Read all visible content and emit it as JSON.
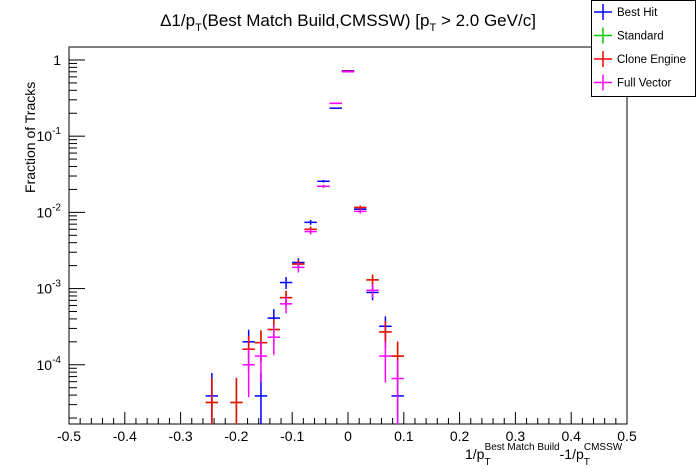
{
  "chart_data": {
    "type": "scatter",
    "title": {
      "main": "Δ1/p",
      "sub1": "T",
      "mid": "(Best Match Build,CMSSW) [p",
      "sub2": "T",
      "end": " > 2.0 GeV/c]"
    },
    "xlabel": {
      "a": "1/p",
      "a_sub": "T",
      "a_sup": "Best Match Build",
      "b": "-1/p",
      "b_sub": "T",
      "b_sup": "CMSSW"
    },
    "ylabel": "Fraction of Tracks",
    "xlim": [
      -0.5,
      0.5
    ],
    "ylim": [
      1.67e-05,
      1.48
    ],
    "yscale": "log",
    "bin_width": 0.0222,
    "x_ticks": [
      "-0.5",
      "-0.4",
      "-0.3",
      "-0.2",
      "-0.1",
      "0",
      "0.1",
      "0.2",
      "0.3",
      "0.4",
      "0.5"
    ],
    "y_ticks": [
      {
        "base": "1",
        "exp": ""
      },
      {
        "base": "10",
        "exp": "-1"
      },
      {
        "base": "10",
        "exp": "-2"
      },
      {
        "base": "10",
        "exp": "-3"
      },
      {
        "base": "10",
        "exp": "-4"
      }
    ],
    "legend_position": "top-right",
    "series": [
      {
        "name": "Standard",
        "color": "#00cc00",
        "x": [
          -0.244,
          -0.2,
          -0.178,
          -0.156,
          -0.133,
          -0.111,
          -0.089,
          -0.067,
          -0.044,
          -0.022,
          0,
          0.022,
          0.044,
          0.067,
          0.089
        ],
        "y": [
          3.2e-05,
          3.2e-05,
          0.00016,
          0.000195,
          0.00029,
          0.00076,
          0.0021,
          0.006,
          0.022,
          0.27,
          0.71,
          0.0116,
          0.0013,
          0.00027,
          0.00013
        ]
      },
      {
        "name": "Best Hit",
        "color": "#0000ff",
        "x": [
          -0.244,
          -0.178,
          -0.156,
          -0.133,
          -0.111,
          -0.089,
          -0.067,
          -0.044,
          -0.022,
          0,
          0.022,
          0.044,
          0.067,
          0.089
        ],
        "y": [
          3.9e-05,
          0.0002,
          3.9e-05,
          0.00041,
          0.0012,
          0.0022,
          0.0074,
          0.0256,
          0.233,
          0.72,
          0.011,
          0.00089,
          0.00032,
          3.9e-05
        ]
      },
      {
        "name": "Clone Engine",
        "color": "#ff0000",
        "x": [
          -0.244,
          -0.2,
          -0.178,
          -0.156,
          -0.133,
          -0.111,
          -0.089,
          -0.067,
          -0.044,
          -0.022,
          0,
          0.022,
          0.044,
          0.067,
          0.089
        ],
        "y": [
          3.2e-05,
          3.2e-05,
          0.00016,
          0.000195,
          0.00029,
          0.00076,
          0.0021,
          0.006,
          0.022,
          0.27,
          0.71,
          0.0116,
          0.0013,
          0.00027,
          0.00013
        ]
      },
      {
        "name": "Full Vector",
        "color": "#ff00ff",
        "x": [
          -0.178,
          -0.156,
          -0.133,
          -0.111,
          -0.089,
          -0.067,
          -0.044,
          -0.022,
          0,
          0.022,
          0.044,
          0.067,
          0.089
        ],
        "y": [
          0.0001,
          0.00013,
          0.00023,
          0.00063,
          0.0019,
          0.0056,
          0.022,
          0.27,
          0.7,
          0.0103,
          0.00095,
          0.00013,
          6.6e-05
        ]
      }
    ],
    "legend_order": [
      "Best Hit",
      "Standard",
      "Clone Engine",
      "Full Vector"
    ]
  }
}
